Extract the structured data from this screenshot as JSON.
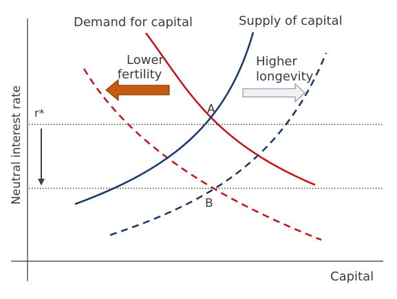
{
  "diagram": {
    "labels": {
      "demand_title": "Demand for capital",
      "supply_title": "Supply of capital",
      "y_axis": "Neutral interest rate",
      "x_axis": "Capital",
      "r_star": "r*",
      "point_a": "A",
      "point_b": "B",
      "lower_fertility_line1": "Lower",
      "lower_fertility_line2": "fertility",
      "higher_longevity_line1": "Higher",
      "higher_longevity_line2": "longevity"
    },
    "colors": {
      "demand": "#c0181c",
      "supply": "#1b3a6b",
      "lower_fertility_arrow": "#c55a11",
      "lower_fertility_arrow_edge": "#7a3306",
      "higher_longevity_arrow": "#eef2f7",
      "higher_longevity_arrow_edge": "#7f7f7f",
      "axis": "#333333",
      "text": "#3a3a3a",
      "r_arrow": "#404040"
    },
    "curves": [
      {
        "name": "demand-curve-original",
        "role": "demand",
        "style": "solid"
      },
      {
        "name": "supply-curve-original",
        "role": "supply",
        "style": "solid"
      },
      {
        "name": "demand-curve-shifted",
        "role": "demand",
        "style": "dashed"
      },
      {
        "name": "supply-curve-shifted",
        "role": "supply",
        "style": "dashed"
      }
    ]
  }
}
